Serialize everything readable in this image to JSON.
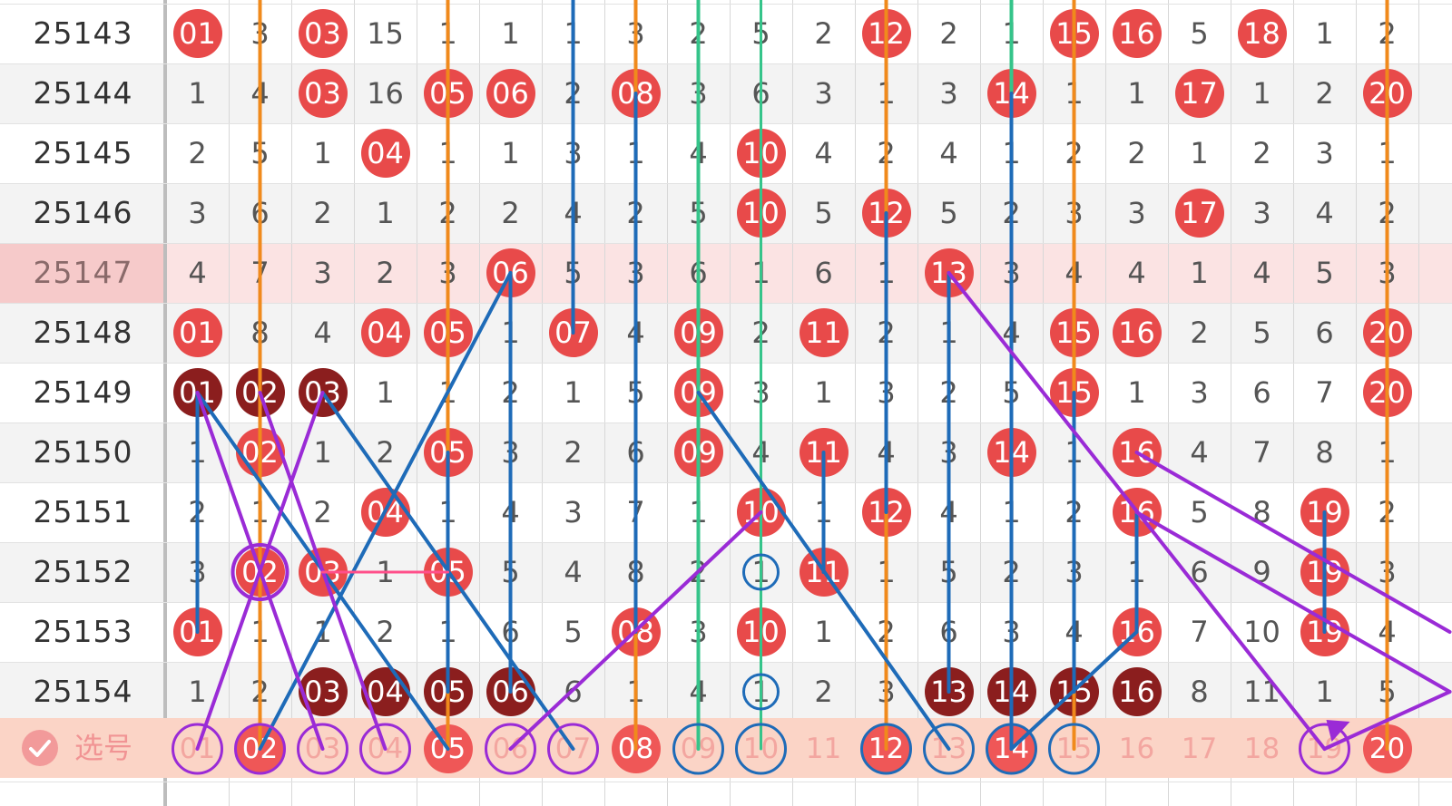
{
  "issues": [
    "25143",
    "25144",
    "25145",
    "25146",
    "25147",
    "25148",
    "25149",
    "25150",
    "25151",
    "25152",
    "25153",
    "25154"
  ],
  "columns": [
    "01",
    "02",
    "03",
    "04",
    "05",
    "06",
    "07",
    "08",
    "09",
    "10",
    "11",
    "12",
    "13",
    "14",
    "15",
    "16",
    "17",
    "18",
    "19",
    "20"
  ],
  "grid": [
    [
      "01",
      "3",
      "03",
      "15",
      "1",
      "1",
      "1",
      "3",
      "2",
      "5",
      "2",
      "12",
      "2",
      "1",
      "15",
      "16",
      "5",
      "18",
      "1",
      "2"
    ],
    [
      "1",
      "4",
      "03",
      "16",
      "05",
      "06",
      "2",
      "08",
      "3",
      "6",
      "3",
      "1",
      "3",
      "14",
      "1",
      "1",
      "17",
      "1",
      "2",
      "20"
    ],
    [
      "2",
      "5",
      "1",
      "04",
      "1",
      "1",
      "3",
      "1",
      "4",
      "10",
      "4",
      "2",
      "4",
      "1",
      "2",
      "2",
      "1",
      "2",
      "3",
      "1"
    ],
    [
      "3",
      "6",
      "2",
      "1",
      "2",
      "2",
      "4",
      "2",
      "5",
      "10",
      "5",
      "12",
      "5",
      "2",
      "3",
      "3",
      "17",
      "3",
      "4",
      "2"
    ],
    [
      "4",
      "7",
      "3",
      "2",
      "3",
      "06",
      "5",
      "3",
      "6",
      "1",
      "6",
      "1",
      "13",
      "3",
      "4",
      "4",
      "1",
      "4",
      "5",
      "3"
    ],
    [
      "01",
      "8",
      "4",
      "04",
      "05",
      "1",
      "07",
      "4",
      "09",
      "2",
      "11",
      "2",
      "1",
      "4",
      "15",
      "16",
      "2",
      "5",
      "6",
      "20"
    ],
    [
      "01",
      "02",
      "03",
      "1",
      "1",
      "2",
      "1",
      "5",
      "09",
      "3",
      "1",
      "3",
      "2",
      "5",
      "15",
      "1",
      "3",
      "6",
      "7",
      "20"
    ],
    [
      "1",
      "02",
      "1",
      "2",
      "05",
      "3",
      "2",
      "6",
      "09",
      "4",
      "11",
      "4",
      "3",
      "14",
      "1",
      "16",
      "4",
      "7",
      "8",
      "1"
    ],
    [
      "2",
      "1",
      "2",
      "04",
      "1",
      "4",
      "3",
      "7",
      "1",
      "10",
      "1",
      "12",
      "4",
      "1",
      "2",
      "16",
      "5",
      "8",
      "19",
      "2"
    ],
    [
      "3",
      "02",
      "03",
      "1",
      "05",
      "5",
      "4",
      "8",
      "2",
      "1",
      "11",
      "1",
      "5",
      "2",
      "3",
      "1",
      "6",
      "9",
      "19",
      "3"
    ],
    [
      "01",
      "1",
      "1",
      "2",
      "1",
      "6",
      "5",
      "08",
      "3",
      "10",
      "1",
      "2",
      "6",
      "3",
      "4",
      "16",
      "7",
      "10",
      "19",
      "4"
    ],
    [
      "1",
      "2",
      "03",
      "04",
      "05",
      "06",
      "6",
      "1",
      "4",
      "1",
      "2",
      "3",
      "13",
      "14",
      "15",
      "16",
      "8",
      "11",
      "1",
      "5"
    ]
  ],
  "dark_balls": [
    "6:0",
    "6:1",
    "6:2",
    "11:2",
    "11:3",
    "11:4",
    "11:5",
    "11:12",
    "11:13",
    "11:14",
    "11:15"
  ],
  "selection_row": {
    "label": "选号",
    "numbers": [
      "01",
      "02",
      "03",
      "04",
      "05",
      "06",
      "07",
      "08",
      "09",
      "10",
      "11",
      "12",
      "13",
      "14",
      "15",
      "16",
      "17",
      "18",
      "19",
      "20"
    ],
    "selected": [
      "02",
      "05",
      "08",
      "12",
      "14",
      "20"
    ]
  },
  "highlight_row_index": 4,
  "colors": {
    "ball": "#e84a4a",
    "ball_dark": "#8b1e1e",
    "line_orange": "#f08a1c",
    "line_green": "#35c48a",
    "line_blue": "#1e6bb8",
    "line_purple": "#9a2bd6",
    "line_pink": "#ff4f8a"
  },
  "icons": {
    "check": "check-circle-icon"
  }
}
